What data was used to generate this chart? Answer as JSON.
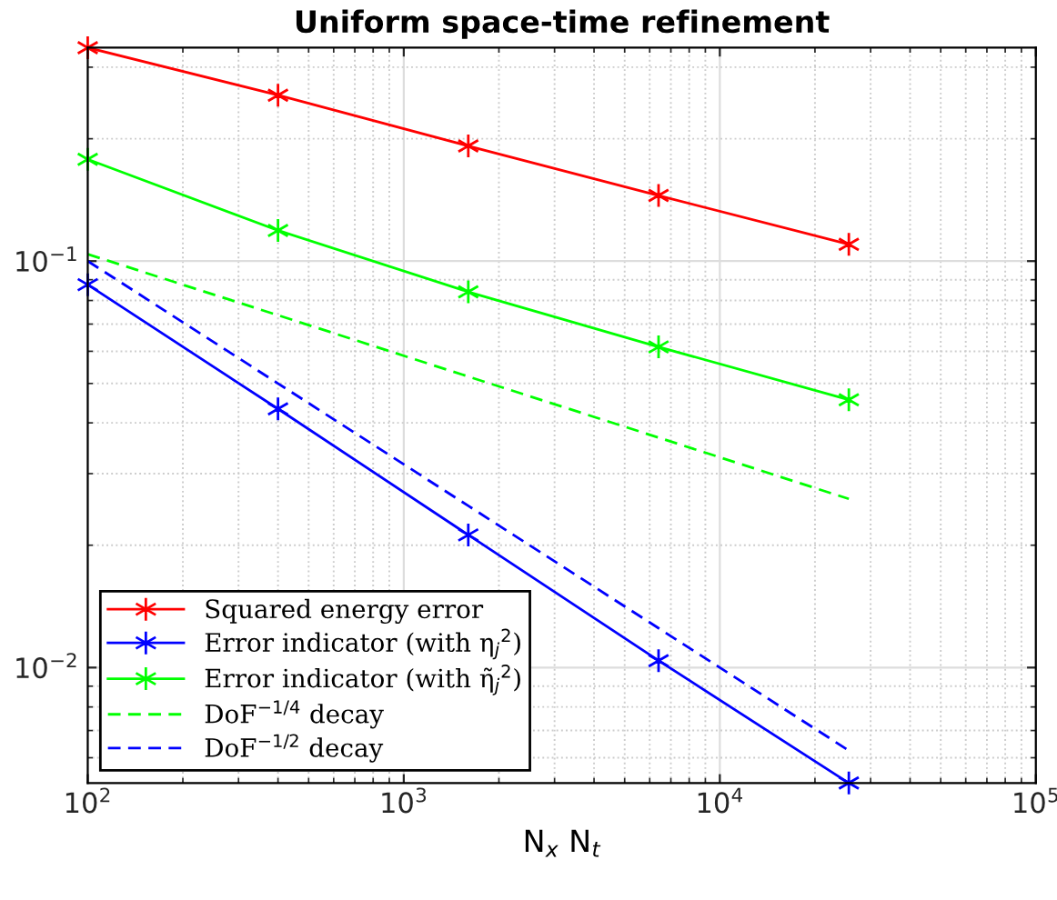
{
  "chart_data": {
    "type": "line",
    "title": "Uniform space-time refinement",
    "xlabel": "N$_{x}$ N$_{t}$",
    "log": "xy",
    "grid": true,
    "legend": "bottom left",
    "marker": "cross",
    "xlim": [
      100,
      100000
    ],
    "ylim": [
      0.0052,
      0.335
    ],
    "xticks": [
      {
        "value": 100,
        "label": "10$^{2}$"
      },
      {
        "value": 1000,
        "label": "10$^{3}$"
      },
      {
        "value": 10000,
        "label": "10$^{4}$"
      },
      {
        "value": 100000,
        "label": "10$^{5}$"
      }
    ],
    "yticks": [
      {
        "value": 0.01,
        "label": "10$^{−2}$"
      },
      {
        "value": 0.1,
        "label": "10$^{−1}$"
      }
    ],
    "x": [
      100,
      400,
      1600,
      6400,
      25600
    ],
    "series": [
      {
        "name": "Squared energy error",
        "color": "#ff0000",
        "values": [
          0.335,
          0.256,
          0.192,
          0.145,
          0.11
        ]
      },
      {
        "name": "Error indicator (with η$_{j}$$^{2}$)",
        "color": "#0000ff",
        "values": [
          0.0875,
          0.0433,
          0.0212,
          0.0104,
          0.0052
        ]
      },
      {
        "name": "Error indicator (with η̃$_{j}$$^{2}$)",
        "color": "#00ff00",
        "values": [
          0.178,
          0.119,
          0.084,
          0.0615,
          0.0456
        ]
      },
      {
        "name": "DoF$^{−1/4}$ decay",
        "color": "#00ff00",
        "line_style": "dashed",
        "marker": "none",
        "values": [
          0.104,
          0.0736,
          0.052,
          0.0368,
          0.026
        ]
      },
      {
        "name": "DoF$^{−1/2}$ decay",
        "color": "#0000ff",
        "line_style": "dashed",
        "marker": "none",
        "values": [
          0.1,
          0.05,
          0.025,
          0.0125,
          0.00625
        ]
      }
    ]
  }
}
